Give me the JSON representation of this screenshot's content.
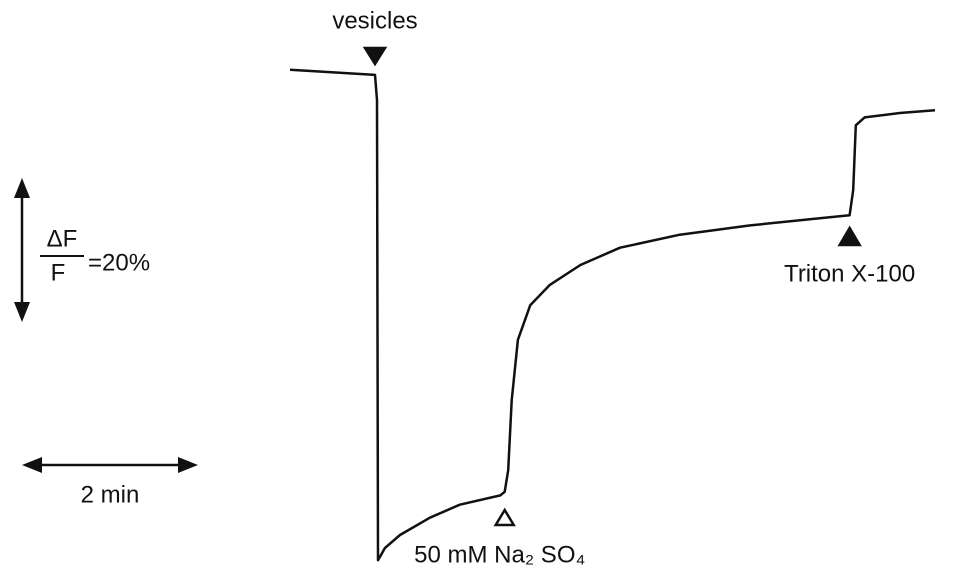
{
  "chart_data": {
    "type": "line",
    "x": [
      0,
      0.966,
      0.989,
      1.0,
      1.08,
      1.25,
      1.59,
      1.93,
      2.39,
      2.44,
      2.48,
      2.52,
      2.59,
      2.73,
      2.95,
      3.3,
      3.75,
      4.43,
      5.23,
      6.02,
      6.36,
      6.4,
      6.43,
      6.53,
      6.93,
      7.33
    ],
    "series": [
      {
        "color": "#111111",
        "values": [
          0.3,
          -0.4,
          -3.9,
          -67.8,
          -66.1,
          -64.3,
          -61.9,
          -60.1,
          -58.8,
          -58.3,
          -55.3,
          -45.6,
          -37.2,
          -32.4,
          -29.6,
          -26.8,
          -24.4,
          -22.6,
          -21.3,
          -20.3,
          -19.9,
          -16.4,
          -7.4,
          -6.3,
          -5.7,
          -5.3
        ]
      }
    ],
    "xlim": [
      0,
      7.33
    ],
    "ylim": [
      -70,
      5
    ],
    "annotations": [
      {
        "label": "vesicles",
        "x": 0.966,
        "marker": "filled-down"
      },
      {
        "label": "50 mM Na₂ SO₄",
        "x": 2.44,
        "marker": "open-up"
      },
      {
        "label": "Triton X-100",
        "x": 6.36,
        "marker": "filled-up"
      }
    ],
    "scale_bars": {
      "y": {
        "value": 20,
        "numerator": "ΔF",
        "denominator": "F",
        "label": "=20%"
      },
      "x": {
        "value": 2,
        "label": "2 min"
      }
    }
  }
}
